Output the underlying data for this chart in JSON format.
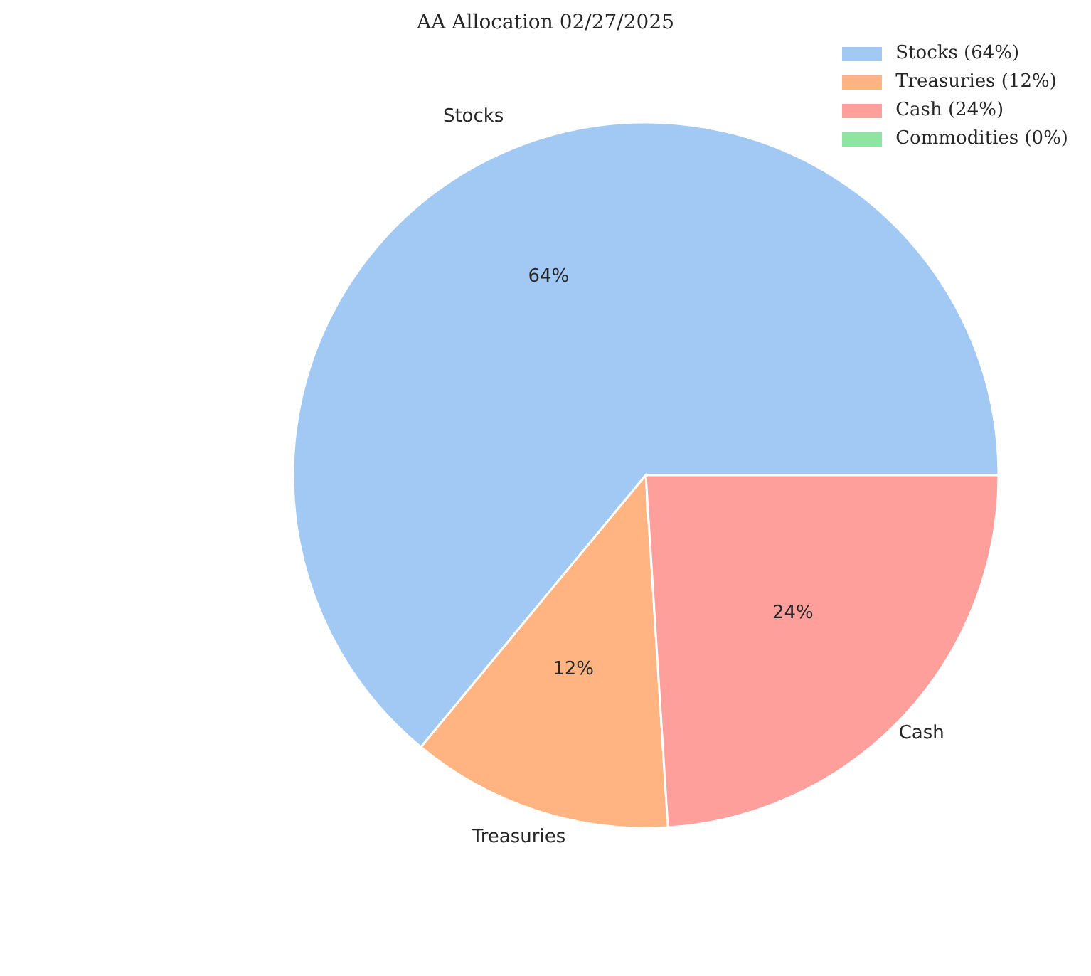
{
  "chart_data": {
    "type": "pie",
    "title": "AA Allocation 02/27/2025",
    "categories": [
      "Stocks (64%)",
      "Treasuries (12%)",
      "Cash (24%)",
      "Commodities (0%)"
    ],
    "values": [
      64,
      12,
      24,
      0
    ],
    "colors": [
      "#a1c9f4",
      "#ffb482",
      "#ff9f9b",
      "#8de5a1"
    ],
    "value_labels": [
      "64%",
      "12%",
      "24%",
      null
    ],
    "annotations": [
      "Stocks",
      "Treasuries",
      "Cash"
    ],
    "legend": "top right"
  }
}
